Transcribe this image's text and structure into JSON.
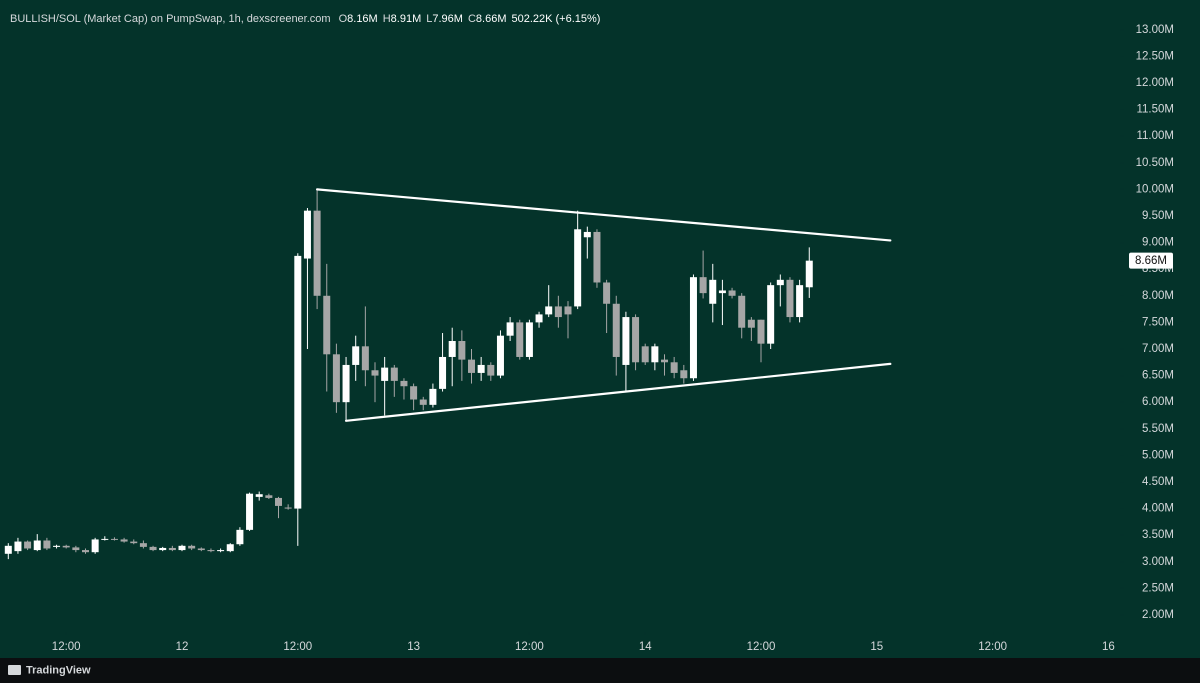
{
  "chart_data": {
    "type": "candlestick",
    "title": "BULLISH/SOL (Market Cap) on PumpSwap, 1h, dexscreener.com",
    "ohlc_header": [
      {
        "key": "O",
        "label": "8.16M"
      },
      {
        "key": "H",
        "label": "8.91M"
      },
      {
        "key": "L",
        "label": "7.96M"
      },
      {
        "key": "C",
        "label": "8.66M"
      }
    ],
    "change": "502.22K (+6.15%)",
    "branding": "TradingView",
    "up_color": "#ffffff",
    "down_color": "#a6a6a6",
    "trend_color": "#ffffff",
    "x": [
      6,
      7,
      8,
      9,
      10,
      11,
      12,
      13,
      14,
      15,
      16,
      17,
      18,
      19,
      20,
      21,
      22,
      23,
      24,
      25,
      26,
      27,
      28,
      29,
      30,
      31,
      32,
      33,
      34,
      35,
      36,
      37,
      38,
      39,
      40,
      41,
      42,
      43,
      44,
      45,
      46,
      47,
      48,
      49,
      50,
      51,
      52,
      53,
      54,
      55,
      56,
      57,
      58,
      59,
      60,
      61,
      62,
      63,
      64,
      65,
      66,
      67,
      68,
      69,
      70,
      71,
      72,
      73,
      74,
      75,
      76,
      77,
      78,
      79,
      80,
      81,
      82,
      83,
      84,
      85,
      86,
      87,
      88,
      89
    ],
    "open": [
      3.15,
      3.2,
      3.38,
      3.22,
      3.4,
      3.28,
      3.3,
      3.27,
      3.22,
      3.18,
      3.42,
      3.43,
      3.42,
      3.38,
      3.35,
      3.28,
      3.22,
      3.26,
      3.22,
      3.3,
      3.25,
      3.22,
      3.2,
      3.2,
      3.33,
      3.6,
      4.22,
      4.25,
      4.2,
      4.02,
      4.0,
      8.7,
      9.6,
      8.0,
      6.9,
      6.0,
      6.7,
      7.05,
      6.6,
      6.4,
      6.65,
      6.4,
      6.3,
      6.05,
      5.95,
      6.25,
      6.85,
      7.15,
      6.8,
      6.55,
      6.7,
      6.5,
      7.25,
      7.5,
      6.85,
      7.5,
      7.65,
      7.8,
      7.8,
      7.8,
      9.1,
      9.2,
      8.25,
      7.85,
      6.7,
      7.6,
      7.05,
      6.75,
      6.8,
      6.75,
      6.6,
      6.45,
      8.35,
      7.85,
      8.05,
      8.1,
      8.0,
      7.55,
      7.55,
      7.1,
      8.2,
      8.3,
      7.6,
      8.16
    ],
    "high": [
      3.35,
      3.45,
      3.4,
      3.52,
      3.45,
      3.32,
      3.32,
      3.3,
      3.25,
      3.45,
      3.48,
      3.46,
      3.45,
      3.42,
      3.4,
      3.3,
      3.28,
      3.3,
      3.32,
      3.32,
      3.27,
      3.25,
      3.25,
      3.35,
      3.65,
      4.3,
      4.32,
      4.28,
      4.22,
      4.08,
      8.8,
      9.65,
      10.0,
      8.6,
      7.1,
      6.85,
      7.25,
      7.8,
      6.75,
      6.85,
      6.7,
      6.45,
      6.35,
      6.1,
      6.35,
      7.3,
      7.4,
      7.35,
      7.0,
      6.85,
      6.75,
      7.35,
      7.6,
      7.55,
      7.55,
      7.7,
      8.2,
      8.0,
      7.9,
      9.6,
      9.3,
      9.25,
      8.3,
      8.0,
      7.7,
      7.65,
      7.1,
      7.1,
      6.9,
      6.85,
      6.7,
      8.4,
      8.85,
      8.6,
      8.3,
      8.15,
      8.05,
      7.6,
      7.55,
      8.25,
      8.4,
      8.35,
      8.3,
      8.91
    ],
    "low": [
      3.05,
      3.15,
      3.22,
      3.2,
      3.22,
      3.25,
      3.25,
      3.18,
      3.15,
      3.15,
      3.4,
      3.4,
      3.36,
      3.33,
      3.25,
      3.2,
      3.2,
      3.2,
      3.2,
      3.22,
      3.2,
      3.18,
      3.18,
      3.18,
      3.3,
      3.58,
      4.15,
      4.18,
      3.82,
      3.98,
      3.3,
      7.0,
      7.75,
      6.2,
      5.8,
      5.65,
      6.4,
      6.3,
      6.0,
      5.75,
      6.1,
      6.05,
      5.85,
      5.85,
      5.9,
      6.2,
      6.3,
      6.4,
      6.35,
      6.4,
      6.4,
      6.45,
      7.15,
      6.8,
      6.8,
      7.4,
      7.6,
      7.4,
      7.2,
      7.75,
      8.7,
      8.15,
      7.3,
      6.5,
      6.2,
      6.6,
      6.7,
      6.6,
      6.5,
      6.45,
      6.35,
      6.4,
      7.95,
      7.5,
      7.45,
      7.95,
      7.2,
      7.15,
      6.75,
      7.0,
      7.8,
      7.5,
      7.5,
      7.96
    ],
    "close": [
      3.3,
      3.38,
      3.25,
      3.4,
      3.25,
      3.3,
      3.27,
      3.22,
      3.18,
      3.42,
      3.43,
      3.42,
      3.38,
      3.35,
      3.28,
      3.22,
      3.26,
      3.22,
      3.3,
      3.25,
      3.22,
      3.2,
      3.22,
      3.33,
      3.6,
      4.28,
      4.27,
      4.2,
      4.05,
      4.0,
      8.75,
      9.6,
      8.0,
      6.9,
      6.0,
      6.7,
      7.05,
      6.6,
      6.5,
      6.65,
      6.4,
      6.3,
      6.05,
      5.95,
      6.25,
      6.85,
      7.15,
      6.8,
      6.55,
      6.7,
      6.5,
      7.25,
      7.5,
      6.85,
      7.5,
      7.65,
      7.8,
      7.6,
      7.65,
      9.25,
      9.2,
      8.25,
      7.85,
      6.85,
      7.6,
      6.75,
      6.75,
      7.05,
      6.75,
      6.55,
      6.45,
      8.35,
      8.05,
      8.3,
      8.1,
      8.0,
      7.4,
      7.4,
      7.1,
      8.2,
      8.3,
      7.6,
      8.2,
      8.66
    ],
    "trendlines": [
      {
        "x": [
          38,
          97.4
        ],
        "y": [
          10.0,
          9.04
        ]
      },
      {
        "x": [
          41,
          97.4
        ],
        "y": [
          5.65,
          6.72
        ]
      }
    ],
    "last_price": {
      "value": 8.66,
      "label": "8.66M"
    },
    "xlim": [
      5.14,
      121.2
    ],
    "xticks": [
      {
        "value": 12,
        "label": "12:00"
      },
      {
        "value": 24,
        "label": "12"
      },
      {
        "value": 36,
        "label": "12:00"
      },
      {
        "value": 48,
        "label": "13"
      },
      {
        "value": 60,
        "label": "12:00"
      },
      {
        "value": 72,
        "label": "14"
      },
      {
        "value": 84,
        "label": "12:00"
      },
      {
        "value": 96,
        "label": "15"
      },
      {
        "value": 108,
        "label": "12:00"
      },
      {
        "value": 120,
        "label": "16"
      }
    ],
    "ylim": [
      1.68,
      13.56
    ],
    "yticks": [
      {
        "value": 2.0,
        "label": "2.00M"
      },
      {
        "value": 2.5,
        "label": "2.50M"
      },
      {
        "value": 3.0,
        "label": "3.00M"
      },
      {
        "value": 3.5,
        "label": "3.50M"
      },
      {
        "value": 4.0,
        "label": "4.00M"
      },
      {
        "value": 4.5,
        "label": "4.50M"
      },
      {
        "value": 5.0,
        "label": "5.00M"
      },
      {
        "value": 5.5,
        "label": "5.50M"
      },
      {
        "value": 6.0,
        "label": "6.00M"
      },
      {
        "value": 6.5,
        "label": "6.50M"
      },
      {
        "value": 7.0,
        "label": "7.00M"
      },
      {
        "value": 7.5,
        "label": "7.50M"
      },
      {
        "value": 8.0,
        "label": "8.00M"
      },
      {
        "value": 8.5,
        "label": "8.50M"
      },
      {
        "value": 9.0,
        "label": "9.00M"
      },
      {
        "value": 9.5,
        "label": "9.50M"
      },
      {
        "value": 10.0,
        "label": "10.00M"
      },
      {
        "value": 10.5,
        "label": "10.50M"
      },
      {
        "value": 11.0,
        "label": "11.00M"
      },
      {
        "value": 11.5,
        "label": "11.50M"
      },
      {
        "value": 12.0,
        "label": "12.00M"
      },
      {
        "value": 12.5,
        "label": "12.50M"
      },
      {
        "value": 13.0,
        "label": "13.00M"
      }
    ],
    "grid": false
  }
}
